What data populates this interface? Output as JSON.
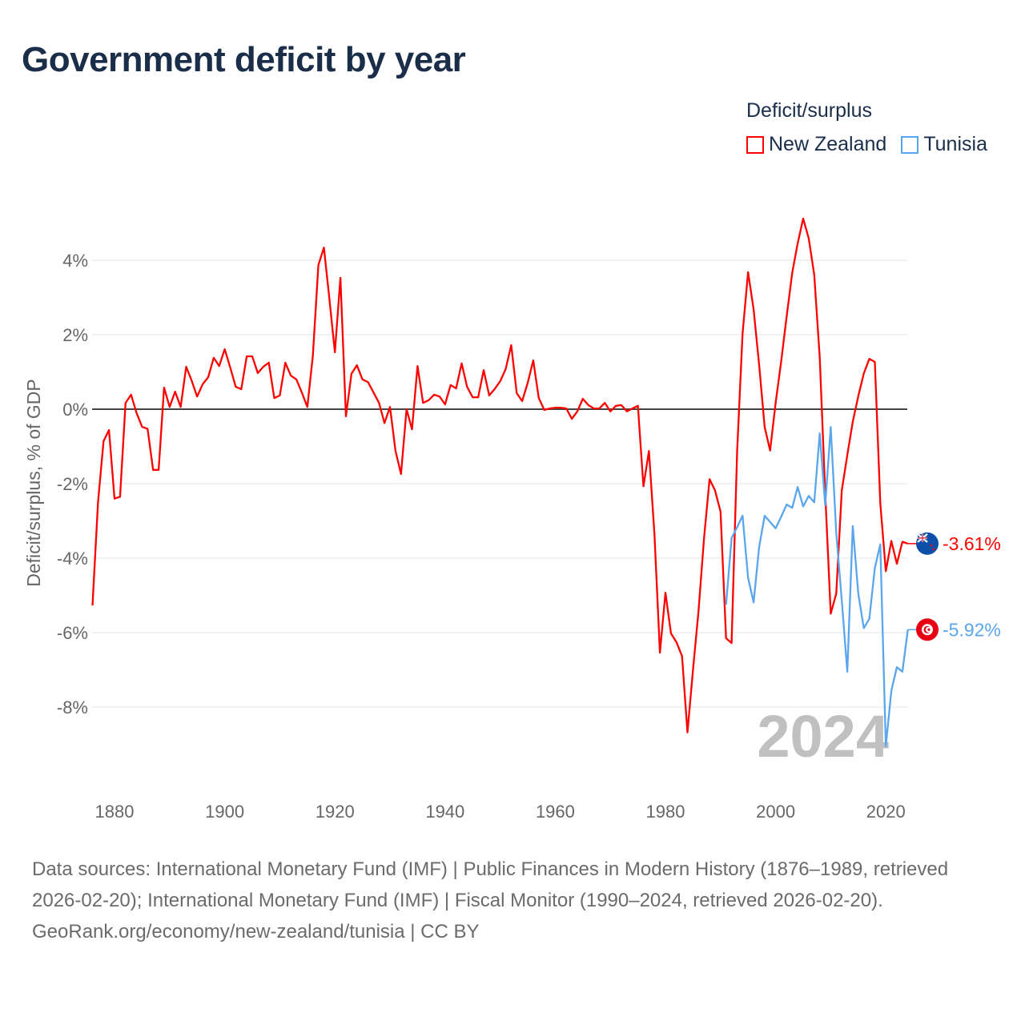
{
  "title": "Government deficit by year",
  "legend": {
    "title": "Deficit/surplus",
    "items": [
      {
        "name": "New Zealand",
        "color": "#ff0000"
      },
      {
        "name": "Tunisia",
        "color": "#5aa6ee"
      }
    ]
  },
  "footer": {
    "sources": "Data sources: International Monetary Fund (IMF) | Public Finances in Modern History (1876–1989, retrieved 2026-02-20); International Monetary Fund (IMF) | Fiscal Monitor (1990–2024, retrieved 2026-02-20).",
    "credit": "GeoRank.org/economy/new-zealand/tunisia | CC BY"
  },
  "chart_data": {
    "type": "line",
    "title": "Government deficit by year",
    "ylabel": "Deficit/surplus, % of GDP",
    "xlabel": "",
    "xlim": [
      1876,
      2024
    ],
    "ylim": [
      -10,
      5.2
    ],
    "yticks": [
      4,
      2,
      0,
      -2,
      -4,
      -6,
      -8
    ],
    "ytick_labels": [
      "4%",
      "2%",
      "0%",
      "-2%",
      "-4%",
      "-6%",
      "-8%"
    ],
    "xticks": [
      1880,
      1900,
      1920,
      1940,
      1960,
      1980,
      2000,
      2020
    ],
    "xtick_labels": [
      "1880",
      "1900",
      "1920",
      "1940",
      "1960",
      "1980",
      "2000",
      "2020"
    ],
    "grid": true,
    "legend_position": "top-right",
    "year_watermark": "2024",
    "series": [
      {
        "name": "New Zealand",
        "color": "#ff0000",
        "start_year": 1876,
        "end_label": "-3.61%",
        "values": [
          -5.27,
          -2.5,
          -0.86,
          -0.56,
          -2.4,
          -2.35,
          0.17,
          0.39,
          -0.1,
          -0.47,
          -0.53,
          -1.63,
          -1.63,
          0.58,
          0.06,
          0.47,
          0.06,
          1.14,
          0.77,
          0.34,
          0.67,
          0.86,
          1.38,
          1.16,
          1.61,
          1.12,
          0.6,
          0.54,
          1.42,
          1.42,
          0.97,
          1.14,
          1.25,
          0.3,
          0.37,
          1.25,
          0.9,
          0.8,
          0.45,
          0.06,
          1.44,
          3.87,
          4.34,
          2.97,
          1.53,
          3.53,
          -0.19,
          0.95,
          1.18,
          0.8,
          0.73,
          0.45,
          0.17,
          -0.37,
          0.06,
          -1.12,
          -1.74,
          0,
          -0.54,
          1.16,
          0.17,
          0.24,
          0.39,
          0.34,
          0.13,
          0.65,
          0.56,
          1.23,
          0.6,
          0.32,
          0.32,
          1.05,
          0.37,
          0.54,
          0.75,
          1.08,
          1.72,
          0.43,
          0.22,
          0.71,
          1.31,
          0.3,
          -0.02,
          0.02,
          0.04,
          0.04,
          0.02,
          -0.26,
          -0.06,
          0.28,
          0.11,
          0.02,
          0.02,
          0.17,
          -0.06,
          0.09,
          0.11,
          -0.06,
          0.02,
          0.09,
          -2.07,
          -1.12,
          -3.37,
          -6.54,
          -4.93,
          -6.02,
          -6.26,
          -6.63,
          -8.68,
          -7.0,
          -5.42,
          -3.46,
          -1.88,
          -2.18,
          -2.75,
          -6.15,
          -6.28,
          -1.14,
          2.03,
          3.68,
          2.68,
          1.19,
          -0.48,
          -1.11,
          0.17,
          1.28,
          2.5,
          3.66,
          4.45,
          5.12,
          4.59,
          3.61,
          1.38,
          -2.25,
          -5.49,
          -4.95,
          -2.18,
          -1.23,
          -0.34,
          0.35,
          0.96,
          1.35,
          1.27,
          -2.53,
          -4.35,
          -3.54,
          -4.15,
          -3.56,
          -3.61
        ]
      },
      {
        "name": "Tunisia",
        "color": "#5aa6ee",
        "start_year": 1991,
        "end_label": "-5.92%",
        "values": [
          -5.25,
          -3.46,
          -3.17,
          -2.86,
          -4.53,
          -5.19,
          -3.7,
          -2.86,
          -3.03,
          -3.2,
          -2.89,
          -2.56,
          -2.65,
          -2.09,
          -2.61,
          -2.33,
          -2.5,
          -0.65,
          -2.58,
          -0.48,
          -3.32,
          -5.14,
          -7.05,
          -3.14,
          -4.95,
          -5.88,
          -5.63,
          -4.26,
          -3.63,
          -9.05,
          -7.56,
          -6.93,
          -7.05,
          -5.92
        ]
      }
    ]
  }
}
